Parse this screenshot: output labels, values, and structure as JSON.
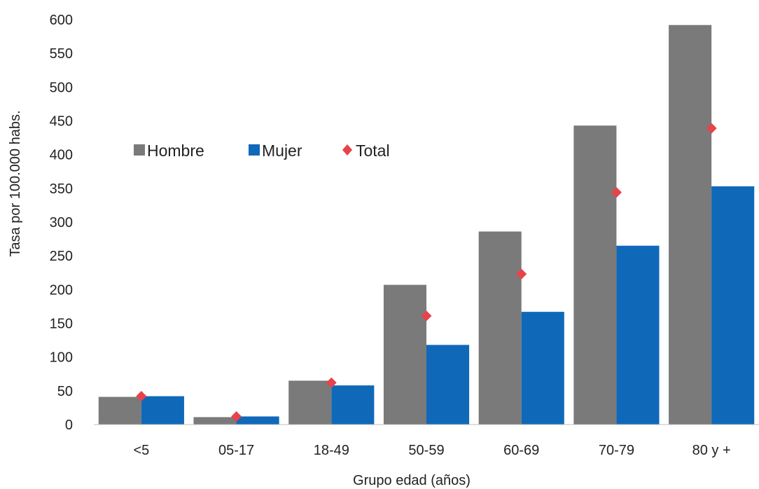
{
  "chart_data": {
    "type": "bar",
    "categories": [
      "<5",
      "05-17",
      "18-49",
      "50-59",
      "60-69",
      "70-79",
      "80 y +"
    ],
    "series": [
      {
        "name": "Hombre",
        "kind": "bar",
        "color": "#7a7a7a",
        "values": [
          41,
          11,
          65,
          207,
          286,
          443,
          592
        ]
      },
      {
        "name": "Mujer",
        "kind": "bar",
        "color": "#1068b8",
        "values": [
          42,
          12,
          58,
          118,
          167,
          265,
          353
        ]
      },
      {
        "name": "Total",
        "kind": "marker",
        "marker": "diamond",
        "color": "#e8424a",
        "values": [
          42,
          12,
          62,
          161,
          223,
          344,
          439
        ]
      }
    ],
    "xlabel": "Grupo edad (años)",
    "ylabel": "Tasa por 100.000 habs.",
    "ylim": [
      0,
      600
    ],
    "yticks": [
      0,
      50,
      100,
      150,
      200,
      250,
      300,
      350,
      400,
      450,
      500,
      550,
      600
    ],
    "grid": false,
    "legend_position": "upper-left"
  }
}
